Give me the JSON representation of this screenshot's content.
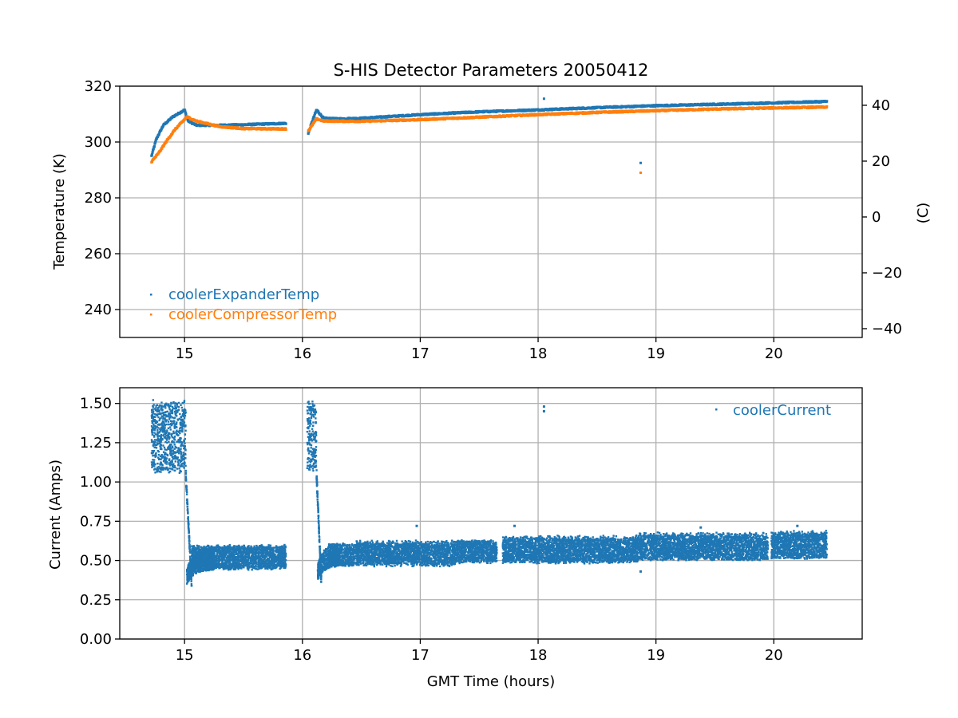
{
  "chart_data": [
    {
      "type": "scatter",
      "title": "S-HIS Detector Parameters 20050412",
      "xlabel": "",
      "ylabel": "Temperature (K)",
      "y2label": "(C)",
      "xlim": [
        14.45,
        20.75
      ],
      "ylim": [
        230,
        320
      ],
      "y2lim": [
        -43.15,
        46.85
      ],
      "xticks": [
        15,
        16,
        17,
        18,
        19,
        20
      ],
      "yticks": [
        240,
        260,
        280,
        300,
        320
      ],
      "y2ticks": [
        -40,
        -20,
        0,
        20,
        40
      ],
      "grid": true,
      "legend": "lower-left",
      "series": [
        {
          "name": "coolerExpanderTemp",
          "color": "#1f77b4",
          "segments": [
            [
              [
                14.72,
                295
              ],
              [
                14.76,
                301
              ],
              [
                14.82,
                306
              ],
              [
                14.9,
                309
              ],
              [
                15.0,
                311.5
              ],
              [
                15.03,
                307.5
              ],
              [
                15.1,
                306
              ],
              [
                15.3,
                306
              ],
              [
                15.5,
                306.2
              ],
              [
                15.86,
                306.7
              ]
            ],
            [
              [
                16.05,
                303
              ],
              [
                16.08,
                307
              ],
              [
                16.12,
                311.5
              ],
              [
                16.18,
                308.5
              ],
              [
                16.3,
                308.3
              ],
              [
                16.5,
                308.5
              ],
              [
                17.0,
                309.8
              ],
              [
                17.5,
                310.8
              ],
              [
                18.0,
                311.5
              ],
              [
                18.5,
                312.3
              ],
              [
                19.0,
                313
              ],
              [
                19.5,
                313.5
              ],
              [
                20.0,
                314
              ],
              [
                20.45,
                314.5
              ]
            ]
          ],
          "outliers": [
            [
              18.05,
              315.5
            ],
            [
              18.87,
              292.5
            ]
          ]
        },
        {
          "name": "coolerCompressorTemp",
          "color": "#ff7f0e",
          "segments": [
            [
              [
                14.72,
                293
              ],
              [
                14.78,
                296
              ],
              [
                14.85,
                300.5
              ],
              [
                14.92,
                304.5
              ],
              [
                15.02,
                309
              ],
              [
                15.1,
                307.5
              ],
              [
                15.3,
                305.5
              ],
              [
                15.5,
                304.8
              ],
              [
                15.86,
                304.7
              ]
            ],
            [
              [
                16.05,
                304
              ],
              [
                16.12,
                308.3
              ],
              [
                16.18,
                307.5
              ],
              [
                16.5,
                307.4
              ],
              [
                17.0,
                308
              ],
              [
                17.5,
                308.9
              ],
              [
                18.0,
                309.8
              ],
              [
                18.5,
                310.6
              ],
              [
                19.0,
                311.2
              ],
              [
                19.5,
                311.8
              ],
              [
                20.0,
                312.2
              ],
              [
                20.45,
                312.5
              ]
            ]
          ],
          "outliers": [
            [
              18.87,
              289
            ]
          ]
        }
      ]
    },
    {
      "type": "scatter",
      "title": "",
      "xlabel": "GMT Time (hours)",
      "ylabel": "Current (Amps)",
      "xlim": [
        14.45,
        20.75
      ],
      "ylim": [
        0,
        1.6
      ],
      "xticks": [
        15,
        16,
        17,
        18,
        19,
        20
      ],
      "yticks": [
        0.0,
        0.25,
        0.5,
        0.75,
        1.0,
        1.25,
        1.5
      ],
      "ytick_labels": [
        "0.00",
        "0.25",
        "0.50",
        "0.75",
        "1.00",
        "1.25",
        "1.50"
      ],
      "grid": true,
      "legend": "top-right",
      "series": [
        {
          "name": "coolerCurrent",
          "color": "#1f77b4",
          "noisy_bands": [
            {
              "x0": 14.72,
              "x1": 15.01,
              "low": [
                1.05,
                1.08
              ],
              "high": [
                1.48,
                1.53
              ]
            },
            {
              "x0": 16.04,
              "x1": 16.12,
              "low": [
                1.05,
                1.1
              ],
              "high": [
                1.48,
                1.52
              ]
            },
            {
              "x0": 15.06,
              "x1": 15.86,
              "low": [
                0.44,
                0.46
              ],
              "high": [
                0.58,
                0.6
              ]
            },
            {
              "x0": 16.22,
              "x1": 16.44,
              "low": [
                0.46,
                0.47
              ],
              "high": [
                0.6,
                0.61
              ]
            },
            {
              "x0": 16.45,
              "x1": 17.3,
              "low": [
                0.46,
                0.49
              ],
              "high": [
                0.6,
                0.63
              ]
            },
            {
              "x0": 17.3,
              "x1": 17.65,
              "low": [
                0.48,
                0.5
              ],
              "high": [
                0.62,
                0.63
              ]
            },
            {
              "x0": 17.7,
              "x1": 18.85,
              "low": [
                0.48,
                0.5
              ],
              "high": [
                0.63,
                0.66
              ]
            },
            {
              "x0": 18.85,
              "x1": 19.95,
              "low": [
                0.5,
                0.51
              ],
              "high": [
                0.65,
                0.68
              ]
            },
            {
              "x0": 19.98,
              "x1": 20.45,
              "low": [
                0.51,
                0.52
              ],
              "high": [
                0.66,
                0.69
              ]
            }
          ],
          "transitions": [
            {
              "x0": 15.01,
              "x1": 15.06,
              "y0": 1.05,
              "y1": 0.36
            },
            {
              "x0": 16.12,
              "x1": 16.16,
              "y0": 1.05,
              "y1": 0.37
            }
          ],
          "recoveries": [
            {
              "x0": 15.02,
              "x1": 15.25,
              "ylow0": 0.35,
              "ylow1": 0.44,
              "yhigh0": 0.45,
              "yhigh1": 0.58
            },
            {
              "x0": 16.13,
              "x1": 16.3,
              "ylow0": 0.37,
              "ylow1": 0.46,
              "yhigh0": 0.47,
              "yhigh1": 0.6
            }
          ],
          "outliers": [
            [
              18.05,
              1.48
            ],
            [
              18.05,
              1.45
            ],
            [
              16.97,
              0.72
            ],
            [
              17.8,
              0.72
            ],
            [
              18.87,
              0.43
            ],
            [
              19.38,
              0.71
            ],
            [
              20.2,
              0.72
            ]
          ]
        }
      ]
    }
  ]
}
